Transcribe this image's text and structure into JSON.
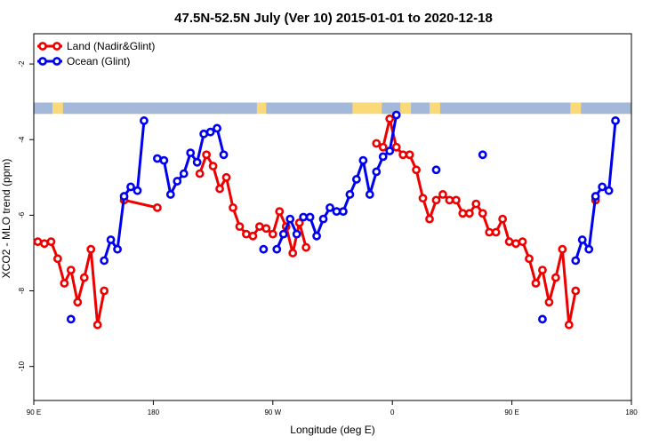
{
  "chart_data": {
    "type": "line",
    "title": "47.5N-52.5N July (Ver 10)   2015-01-01 to 2020-12-18",
    "xlabel": "Longitude (deg E)",
    "ylabel": "XCO2 - MLO trend (ppm)",
    "xlim": [
      90,
      540
    ],
    "ylim": [
      -10.9,
      -1.2
    ],
    "x_ticks": [
      {
        "value": 90,
        "label": "90 E"
      },
      {
        "value": 180,
        "label": "180"
      },
      {
        "value": 270,
        "label": "90 W"
      },
      {
        "value": 360,
        "label": "0"
      },
      {
        "value": 450,
        "label": "90 E"
      },
      {
        "value": 540,
        "label": "180"
      }
    ],
    "y_ticks": [
      {
        "value": -2,
        "label": "-2"
      },
      {
        "value": -4,
        "label": "-4"
      },
      {
        "value": -6,
        "label": "-6"
      },
      {
        "value": -8,
        "label": "-8"
      },
      {
        "value": -10,
        "label": "-10"
      }
    ],
    "grid": false,
    "legend_position": "top-left",
    "land_ocean_strip": {
      "y_range": [
        -3.32,
        -3.02
      ],
      "land_color": "#f9d978",
      "ocean_color": "#a4b9d9"
    },
    "series": [
      {
        "name": "Land (Nadir&Glint)",
        "color": "#ee0000",
        "segments": [
          [
            [
              93,
              -6.7
            ],
            [
              98,
              -6.75
            ],
            [
              103,
              -6.7
            ],
            [
              108,
              -7.15
            ],
            [
              113,
              -7.8
            ],
            [
              118,
              -7.45
            ],
            [
              123,
              -8.3
            ],
            [
              128,
              -7.65
            ],
            [
              133,
              -6.9
            ],
            [
              138,
              -8.9
            ],
            [
              143,
              -8.0
            ]
          ],
          [
            [
              158,
              -5.6
            ],
            [
              183,
              -5.8
            ]
          ],
          [
            [
              215,
              -4.9
            ],
            [
              220,
              -4.4
            ],
            [
              225,
              -4.7
            ],
            [
              230,
              -5.3
            ],
            [
              235,
              -5.0
            ],
            [
              240,
              -5.8
            ],
            [
              245,
              -6.3
            ],
            [
              250,
              -6.5
            ],
            [
              255,
              -6.55
            ],
            [
              260,
              -6.3
            ],
            [
              265,
              -6.35
            ],
            [
              270,
              -6.5
            ],
            [
              275,
              -5.9
            ],
            [
              280,
              -6.3
            ],
            [
              285,
              -7.0
            ],
            [
              290,
              -6.2
            ],
            [
              295,
              -6.85
            ]
          ],
          [
            [
              348,
              -4.1
            ],
            [
              353,
              -4.2
            ],
            [
              358,
              -3.45
            ],
            [
              363,
              -4.2
            ],
            [
              368,
              -4.4
            ],
            [
              373,
              -4.4
            ],
            [
              378,
              -4.8
            ],
            [
              383,
              -5.55
            ],
            [
              388,
              -6.1
            ],
            [
              393,
              -5.6
            ],
            [
              398,
              -5.45
            ],
            [
              403,
              -5.6
            ],
            [
              408,
              -5.6
            ],
            [
              413,
              -5.95
            ],
            [
              418,
              -5.95
            ],
            [
              423,
              -5.7
            ],
            [
              428,
              -5.95
            ],
            [
              433,
              -6.45
            ],
            [
              438,
              -6.45
            ],
            [
              443,
              -6.1
            ],
            [
              448,
              -6.7
            ],
            [
              453,
              -6.75
            ],
            [
              458,
              -6.7
            ],
            [
              463,
              -7.15
            ],
            [
              468,
              -7.8
            ],
            [
              473,
              -7.45
            ],
            [
              478,
              -8.3
            ],
            [
              483,
              -7.65
            ],
            [
              488,
              -6.9
            ],
            [
              493,
              -8.9
            ],
            [
              498,
              -8.0
            ]
          ],
          [
            [
              513,
              -5.6
            ]
          ]
        ]
      },
      {
        "name": "Ocean (Glint)",
        "color": "#0000ee",
        "segments": [
          [
            [
              118,
              -8.75
            ]
          ],
          [
            [
              143,
              -7.2
            ],
            [
              148,
              -6.65
            ],
            [
              153,
              -6.9
            ],
            [
              158,
              -5.5
            ],
            [
              163,
              -5.25
            ],
            [
              168,
              -5.35
            ],
            [
              173,
              -3.5
            ]
          ],
          [
            [
              183,
              -4.5
            ],
            [
              188,
              -4.55
            ],
            [
              193,
              -5.45
            ],
            [
              198,
              -5.1
            ],
            [
              203,
              -4.9
            ],
            [
              208,
              -4.35
            ],
            [
              213,
              -4.6
            ],
            [
              218,
              -3.85
            ],
            [
              223,
              -3.8
            ],
            [
              228,
              -3.7
            ],
            [
              233,
              -4.4
            ]
          ],
          [
            [
              263,
              -6.9
            ]
          ],
          [
            [
              273,
              -6.9
            ],
            [
              278,
              -6.5
            ],
            [
              283,
              -6.1
            ],
            [
              288,
              -6.5
            ]
          ],
          [
            [
              293,
              -6.05
            ],
            [
              298,
              -6.05
            ],
            [
              303,
              -6.55
            ],
            [
              308,
              -6.1
            ],
            [
              313,
              -5.8
            ],
            [
              318,
              -5.9
            ],
            [
              323,
              -5.9
            ],
            [
              328,
              -5.45
            ],
            [
              333,
              -5.05
            ],
            [
              338,
              -4.55
            ],
            [
              343,
              -5.45
            ],
            [
              348,
              -4.85
            ],
            [
              353,
              -4.45
            ],
            [
              358,
              -4.3
            ],
            [
              363,
              -3.35
            ]
          ],
          [
            [
              393,
              -4.8
            ]
          ],
          [
            [
              428,
              -4.4
            ]
          ],
          [
            [
              473,
              -8.75
            ]
          ],
          [
            [
              498,
              -7.2
            ],
            [
              503,
              -6.65
            ],
            [
              508,
              -6.9
            ],
            [
              513,
              -5.5
            ],
            [
              518,
              -5.25
            ],
            [
              523,
              -5.35
            ],
            [
              528,
              -3.5
            ]
          ]
        ]
      }
    ]
  }
}
